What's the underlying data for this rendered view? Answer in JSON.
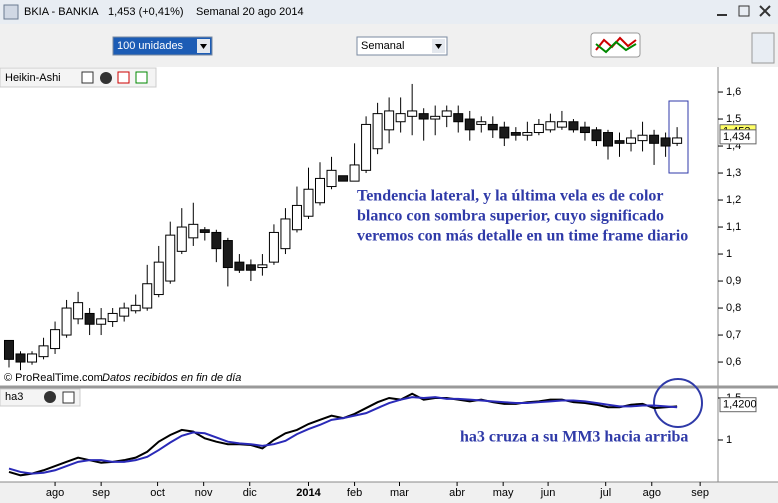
{
  "window": {
    "title": "BKIA - BANKIA",
    "quote": "1,453 (+0,41%)",
    "period": "Semanal  20 ago 2014"
  },
  "toolbar": {
    "units": "100 unidades",
    "timeframe": "Semanal"
  },
  "chart_data": [
    {
      "type": "candlestick",
      "title": "Heikin-Ashi",
      "credit": "© ProRealTime.com",
      "note": "Datos recibidos en fin de día",
      "annotation": [
        "Tendencia lateral, y la última vela es de color",
        "blanco con sombra superior, cuyo significado",
        "veremos con más detalle en un time frame diario"
      ],
      "up_color": "#ffffff",
      "down_color": "#1a1a1a",
      "open": [
        0.68,
        0.63,
        0.6,
        0.62,
        0.65,
        0.7,
        0.76,
        0.78,
        0.74,
        0.75,
        0.77,
        0.79,
        0.8,
        0.85,
        0.9,
        1.01,
        1.06,
        1.09,
        1.08,
        1.05,
        0.97,
        0.96,
        0.95,
        0.97,
        1.02,
        1.09,
        1.14,
        1.19,
        1.25,
        1.29,
        1.27,
        1.31,
        1.39,
        1.46,
        1.49,
        1.51,
        1.52,
        1.5,
        1.51,
        1.52,
        1.5,
        1.48,
        1.48,
        1.47,
        1.45,
        1.44,
        1.45,
        1.46,
        1.47,
        1.49,
        1.47,
        1.46,
        1.45,
        1.42,
        1.41,
        1.42,
        1.44,
        1.43,
        1.41
      ],
      "high": [
        0.68,
        0.64,
        0.64,
        0.69,
        0.75,
        0.83,
        0.86,
        0.8,
        0.8,
        0.8,
        0.82,
        0.85,
        0.96,
        1.03,
        1.12,
        1.17,
        1.19,
        1.1,
        1.09,
        1.06,
        1.0,
        0.98,
        1.0,
        1.11,
        1.17,
        1.25,
        1.32,
        1.34,
        1.36,
        1.29,
        1.41,
        1.51,
        1.56,
        1.58,
        1.58,
        1.63,
        1.54,
        1.55,
        1.55,
        1.55,
        1.53,
        1.51,
        1.51,
        1.49,
        1.47,
        1.49,
        1.5,
        1.52,
        1.53,
        1.5,
        1.49,
        1.47,
        1.46,
        1.45,
        1.46,
        1.49,
        1.46,
        1.45,
        1.47
      ],
      "low": [
        0.58,
        0.57,
        0.59,
        0.61,
        0.63,
        0.69,
        0.74,
        0.7,
        0.7,
        0.73,
        0.75,
        0.78,
        0.79,
        0.84,
        0.89,
        1.0,
        1.03,
        1.05,
        0.97,
        0.88,
        0.93,
        0.9,
        0.92,
        0.96,
        1.0,
        1.08,
        1.13,
        1.18,
        1.24,
        1.27,
        1.27,
        1.3,
        1.37,
        1.41,
        1.45,
        1.44,
        1.42,
        1.44,
        1.47,
        1.45,
        1.42,
        1.45,
        1.43,
        1.4,
        1.42,
        1.42,
        1.44,
        1.45,
        1.46,
        1.45,
        1.42,
        1.4,
        1.35,
        1.36,
        1.38,
        1.38,
        1.33,
        1.36,
        1.4
      ],
      "close": [
        0.61,
        0.6,
        0.63,
        0.66,
        0.72,
        0.8,
        0.82,
        0.74,
        0.76,
        0.78,
        0.8,
        0.81,
        0.89,
        0.97,
        1.07,
        1.1,
        1.11,
        1.08,
        1.02,
        0.95,
        0.94,
        0.94,
        0.96,
        1.08,
        1.13,
        1.18,
        1.24,
        1.28,
        1.31,
        1.27,
        1.33,
        1.48,
        1.52,
        1.53,
        1.52,
        1.53,
        1.5,
        1.51,
        1.53,
        1.49,
        1.46,
        1.49,
        1.46,
        1.43,
        1.44,
        1.45,
        1.48,
        1.49,
        1.49,
        1.46,
        1.45,
        1.42,
        1.4,
        1.41,
        1.43,
        1.44,
        1.41,
        1.4,
        1.43
      ],
      "xlim": [
        -0.78,
        61.55
      ],
      "ylim": [
        0.515,
        1.689
      ],
      "yticks": [
        {
          "value": 0.6,
          "label": "0,6"
        },
        {
          "value": 0.7,
          "label": "0,7"
        },
        {
          "value": 0.8,
          "label": "0,8"
        },
        {
          "value": 0.9,
          "label": "0,9"
        },
        1,
        {
          "value": 1.1,
          "label": "1,1"
        },
        {
          "value": 1.2,
          "label": "1,2"
        },
        {
          "value": 1.3,
          "label": "1,3"
        },
        {
          "value": 1.4,
          "label": "1,4"
        },
        {
          "value": 1.5,
          "label": "1,5"
        },
        {
          "value": 1.6,
          "label": "1,6"
        }
      ],
      "price_labels": [
        {
          "value": 1.453,
          "label": "1,453",
          "color": "#ffff66"
        },
        {
          "value": 1.434,
          "label": "1,434",
          "color": "#ffffff"
        }
      ]
    },
    {
      "type": "line",
      "title": "ha3",
      "annotation": "ha3 cruza a su MM3 hacia arriba",
      "series": [
        {
          "color": "#000000",
          "values": [
            0.62,
            0.58,
            0.6,
            0.64,
            0.69,
            0.74,
            0.79,
            0.76,
            0.73,
            0.74,
            0.76,
            0.79,
            0.86,
            0.98,
            1.06,
            1.12,
            1.1,
            1.02,
            0.98,
            0.95,
            0.95,
            0.94,
            0.9,
            1.0,
            1.08,
            1.12,
            1.19,
            1.24,
            1.29,
            1.26,
            1.31,
            1.38,
            1.45,
            1.5,
            1.48,
            1.55,
            1.48,
            1.5,
            1.5,
            1.48,
            1.46,
            1.48,
            1.45,
            1.43,
            1.43,
            1.45,
            1.46,
            1.48,
            1.48,
            1.45,
            1.44,
            1.42,
            1.39,
            1.39,
            1.42,
            1.43,
            1.38,
            1.39,
            1.4
          ]
        },
        {
          "color": "#2a2ab8",
          "values": [
            0.66,
            0.62,
            0.6,
            0.61,
            0.64,
            0.69,
            0.74,
            0.76,
            0.76,
            0.74,
            0.74,
            0.76,
            0.8,
            0.88,
            0.97,
            1.05,
            1.09,
            1.08,
            1.03,
            0.98,
            0.96,
            0.95,
            0.93,
            0.95,
            0.99,
            1.07,
            1.13,
            1.18,
            1.24,
            1.26,
            1.29,
            1.32,
            1.38,
            1.44,
            1.48,
            1.51,
            1.5,
            1.51,
            1.49,
            1.49,
            1.48,
            1.47,
            1.46,
            1.45,
            1.44,
            1.44,
            1.45,
            1.46,
            1.47,
            1.47,
            1.46,
            1.44,
            1.42,
            1.4,
            1.4,
            1.41,
            1.41,
            1.4,
            1.39
          ]
        }
      ],
      "xlim": [
        -0.78,
        61.55
      ],
      "ylim": [
        0.524,
        1.595
      ],
      "yticks": [
        1,
        {
          "value": 1.5,
          "label": "1,5"
        }
      ],
      "price_labels": [
        {
          "value": 1.42,
          "label": "1,4200",
          "color": "#ffffff"
        }
      ],
      "xticks": [
        {
          "value": 4.0,
          "label": "ago"
        },
        {
          "value": 8.0,
          "label": "sep"
        },
        {
          "value": 12.9,
          "label": "oct"
        },
        {
          "value": 16.9,
          "label": "nov"
        },
        {
          "value": 20.9,
          "label": "dic"
        },
        {
          "value": 26.0,
          "label": "2014"
        },
        {
          "value": 30.0,
          "label": "feb"
        },
        {
          "value": 33.9,
          "label": "mar"
        },
        {
          "value": 38.9,
          "label": "abr"
        },
        {
          "value": 42.9,
          "label": "may"
        },
        {
          "value": 46.8,
          "label": "jun"
        },
        {
          "value": 51.8,
          "label": "jul"
        },
        {
          "value": 55.8,
          "label": "ago"
        },
        {
          "value": 60.0,
          "label": "sep"
        }
      ]
    }
  ]
}
